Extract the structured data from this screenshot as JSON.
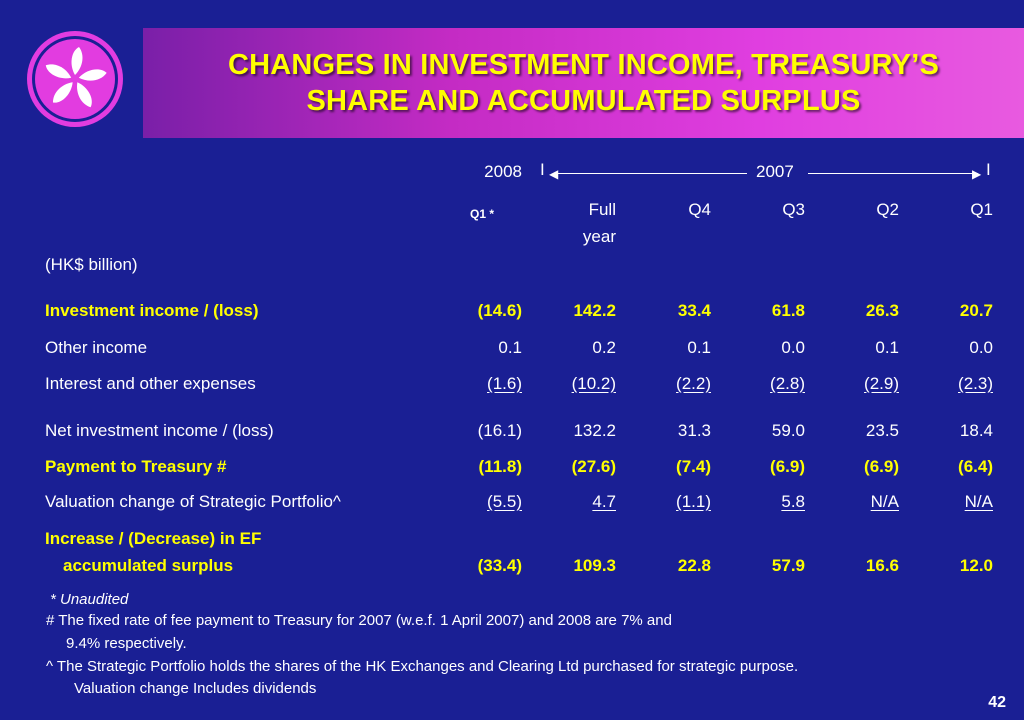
{
  "header": {
    "title_line1": "CHANGES IN INVESTMENT INCOME, TREASURY’S",
    "title_line2": "SHARE AND ACCUMULATED SURPLUS"
  },
  "colors": {
    "background": "#1a1f94",
    "title_text": "#ffff00",
    "accent_bar": "#d63cd6"
  },
  "logo": {
    "icon": "bauhinia-flower-icon"
  },
  "table": {
    "year_2008": "2008",
    "year_2007": "2007",
    "col_headers": {
      "q1_2008": "Q1 *",
      "full_line1": "Full",
      "full_line2": "year",
      "q4": "Q4",
      "q3": "Q3",
      "q2": "Q2",
      "q1": "Q1"
    },
    "unit_label": "(HK$ billion)",
    "rows": [
      {
        "label": "Investment income / (loss)",
        "values": [
          "(14.6)",
          "142.2",
          "33.4",
          "61.8",
          "26.3",
          "20.7"
        ]
      },
      {
        "label": "Other income",
        "values": [
          "0.1",
          "0.2",
          "0.1",
          "0.0",
          "0.1",
          "0.0"
        ]
      },
      {
        "label": "Interest and other expenses",
        "values": [
          "(1.6)",
          "(10.2)",
          "(2.2)",
          "(2.8)",
          "(2.9)",
          "(2.3)"
        ]
      },
      {
        "label": "Net investment income / (loss)",
        "values": [
          "(16.1)",
          "132.2",
          "31.3",
          "59.0",
          "23.5",
          "18.4"
        ]
      },
      {
        "label": "Payment to Treasury #",
        "values": [
          "(11.8)",
          "(27.6)",
          "(7.4)",
          "(6.9)",
          "(6.9)",
          "(6.4)"
        ]
      },
      {
        "label": "Valuation change of Strategic Portfolio^",
        "values": [
          "(5.5)",
          "4.7",
          "(1.1)",
          "5.8",
          "N/A",
          "N/A"
        ]
      },
      {
        "label_line1": "Increase / (Decrease) in EF",
        "label_line2": "accumulated surplus",
        "values": [
          "(33.4)",
          "109.3",
          "22.8",
          "57.9",
          "16.6",
          "12.0"
        ]
      }
    ]
  },
  "footnotes": {
    "unaudited": "*  Unaudited",
    "hash_line1": "#  The fixed rate of fee payment to Treasury for 2007 (w.e.f. 1 April 2007) and 2008 are 7% and",
    "hash_line2": "9.4% respectively.",
    "caret_line1": "^   The Strategic Portfolio holds the shares of the HK Exchanges and Clearing Ltd purchased for strategic purpose.",
    "caret_line2": "Valuation change Includes dividends"
  },
  "page_number": "42"
}
